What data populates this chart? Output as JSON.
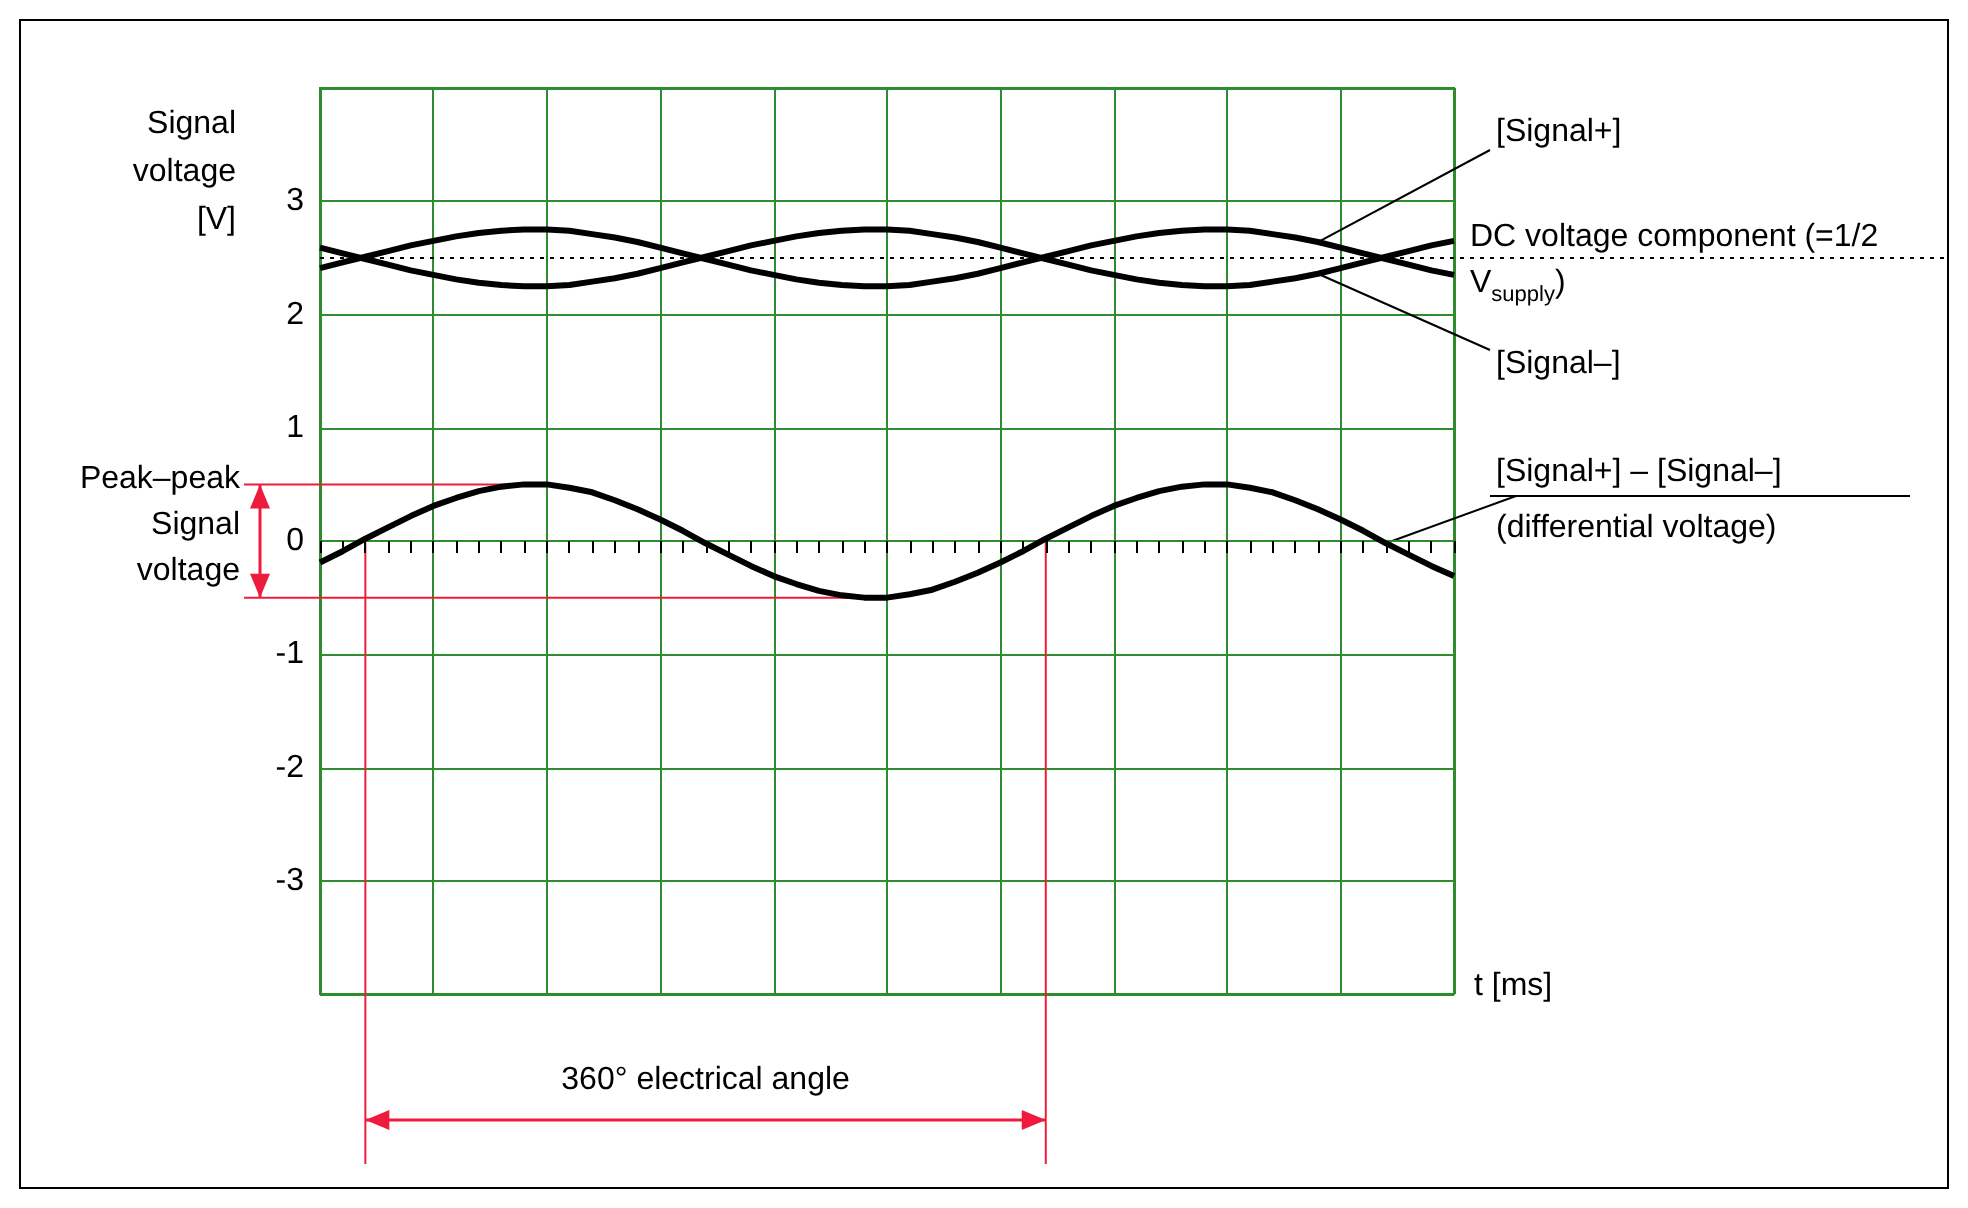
{
  "chart_data": {
    "type": "line",
    "ylabel": "Signal voltage [V]",
    "xlabel": "t [ms]",
    "categories": [
      null,
      null,
      null,
      null,
      null,
      null,
      null,
      null,
      null,
      null,
      null,
      null,
      null,
      null,
      null,
      null,
      null,
      null,
      null,
      null,
      null,
      null,
      null,
      null,
      null,
      null,
      null,
      null,
      null,
      null,
      null,
      null,
      null,
      null,
      null,
      null,
      null,
      null,
      null,
      null,
      null,
      null,
      null,
      null,
      null,
      null,
      null,
      null,
      null,
      null,
      null
    ],
    "series": [
      {
        "name": "[Signal+]",
        "color": "#000000",
        "values": [
          2.41,
          2.46,
          2.51,
          2.56,
          2.61,
          2.65,
          2.69,
          2.72,
          2.74,
          2.75,
          2.75,
          2.74,
          2.71,
          2.68,
          2.64,
          2.59,
          2.54,
          2.49,
          2.44,
          2.39,
          2.35,
          2.31,
          2.28,
          2.26,
          2.25,
          2.25,
          2.26,
          2.29,
          2.32,
          2.36,
          2.41,
          2.46,
          2.51,
          2.56,
          2.61,
          2.65,
          2.69,
          2.72,
          2.74,
          2.75,
          2.75,
          2.74,
          2.71,
          2.68,
          2.64,
          2.59,
          2.54,
          2.49,
          2.44,
          2.39,
          2.35
        ]
      },
      {
        "name": "[Signal–]",
        "color": "#000000",
        "values": [
          2.59,
          2.54,
          2.49,
          2.44,
          2.39,
          2.35,
          2.31,
          2.28,
          2.26,
          2.25,
          2.25,
          2.26,
          2.29,
          2.32,
          2.36,
          2.41,
          2.46,
          2.51,
          2.56,
          2.61,
          2.65,
          2.69,
          2.72,
          2.74,
          2.75,
          2.75,
          2.74,
          2.71,
          2.68,
          2.64,
          2.59,
          2.54,
          2.49,
          2.44,
          2.39,
          2.35,
          2.31,
          2.28,
          2.26,
          2.25,
          2.25,
          2.26,
          2.29,
          2.32,
          2.36,
          2.41,
          2.46,
          2.51,
          2.56,
          2.61,
          2.65
        ]
      },
      {
        "name": "[Signal+] – [Signal–]",
        "color": "#000000",
        "values": [
          -0.19,
          -0.09,
          0.02,
          0.12,
          0.22,
          0.31,
          0.38,
          0.44,
          0.48,
          0.5,
          0.5,
          0.47,
          0.43,
          0.36,
          0.28,
          0.19,
          0.09,
          -0.02,
          -0.12,
          -0.22,
          -0.31,
          -0.38,
          -0.44,
          -0.48,
          -0.5,
          -0.5,
          -0.47,
          -0.43,
          -0.36,
          -0.28,
          -0.19,
          -0.09,
          0.02,
          0.12,
          0.22,
          0.31,
          0.38,
          0.44,
          0.48,
          0.5,
          0.5,
          0.47,
          0.43,
          0.36,
          0.28,
          0.19,
          0.09,
          -0.02,
          -0.12,
          -0.22,
          -0.31
        ]
      }
    ],
    "ylim": [
      -4,
      4
    ],
    "yticks": [
      -3,
      -2,
      -1,
      0,
      1,
      2,
      3
    ],
    "grid": true,
    "marker": "none",
    "line_style": "solid",
    "ref_lines": [
      {
        "axis": "y",
        "value": 2.5,
        "label": "DC voltage component (=1/2 V$_{supply}$)",
        "line_style": "dotted",
        "color": "#000000"
      }
    ],
    "annotations": [
      "Peak–peak Signal voltage",
      "360° electrical angle",
      "(differential voltage)"
    ]
  }
}
